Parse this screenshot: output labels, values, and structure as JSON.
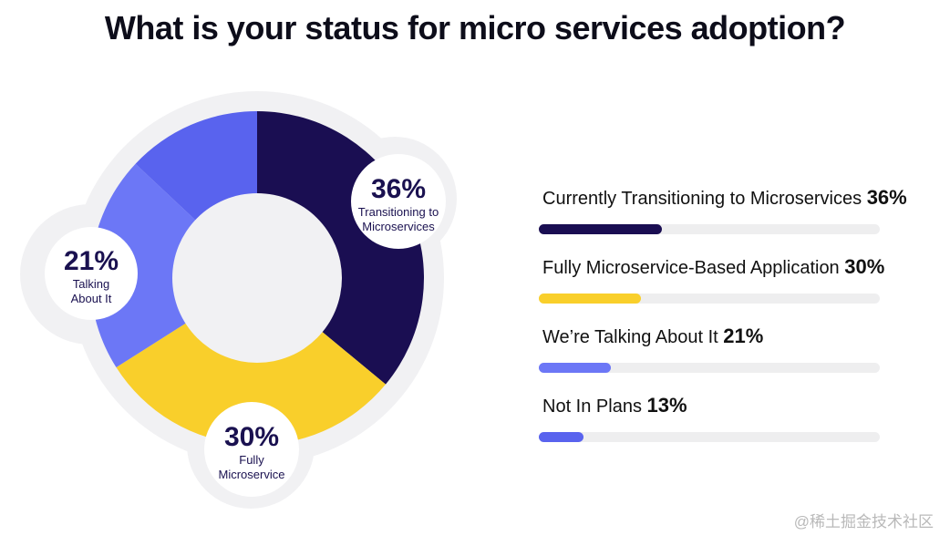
{
  "title": "What is your status for micro services adoption?",
  "chart_data": {
    "type": "pie",
    "variant": "donut",
    "categories": [
      "Currently Transitioning to Microservices",
      "Fully Microservice-Based Application",
      "We’re Talking About It",
      "Not In Plans"
    ],
    "values": [
      36,
      30,
      21,
      13
    ],
    "unit": "%",
    "colors": [
      "#1a0e52",
      "#f9cf2b",
      "#6c77f6",
      "#5963ee"
    ],
    "callouts": [
      {
        "pct": "36%",
        "label_lines": [
          "Transitioning to",
          "Microservices"
        ]
      },
      {
        "pct": "30%",
        "label_lines": [
          "Fully",
          "Microservice"
        ]
      },
      {
        "pct": "21%",
        "label_lines": [
          "Talking",
          "About It"
        ]
      }
    ]
  },
  "legend": [
    {
      "label": "Currently Transitioning to Microservices",
      "pct_text": "36%",
      "value": 36,
      "color": "#1a0e52"
    },
    {
      "label": "Fully Microservice-Based Application",
      "pct_text": "30%",
      "value": 30,
      "color": "#f9cf2b"
    },
    {
      "label": "We’re Talking About It",
      "pct_text": "21%",
      "value": 21,
      "color": "#6c77f6"
    },
    {
      "label": "Not In Plans",
      "pct_text": "13%",
      "value": 13,
      "color": "#5963ee"
    }
  ],
  "watermark": "@稀土掘金技术社区"
}
